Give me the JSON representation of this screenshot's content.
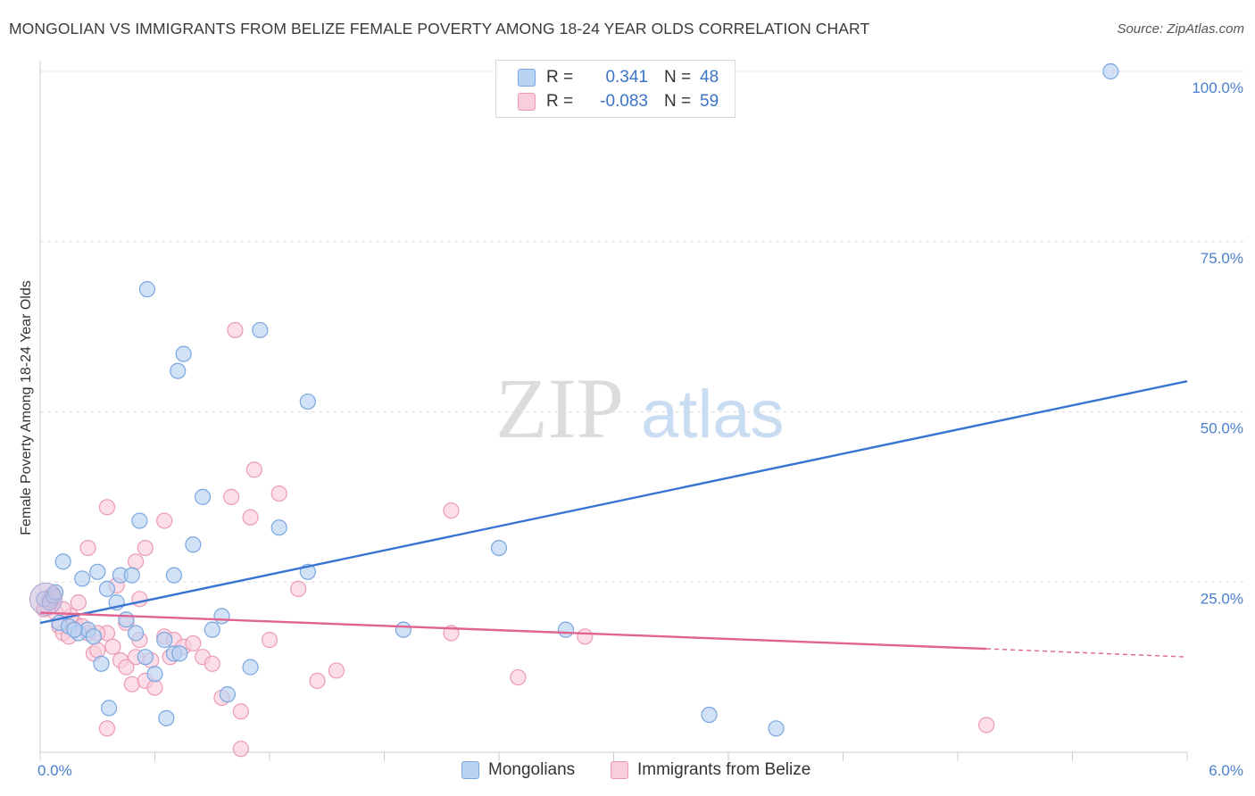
{
  "title": "MONGOLIAN VS IMMIGRANTS FROM BELIZE FEMALE POVERTY AMONG 18-24 YEAR OLDS CORRELATION CHART",
  "source": "Source: ZipAtlas.com",
  "watermark": {
    "zip": "ZIP",
    "atlas": "atlas"
  },
  "legend": {
    "rows": [
      {
        "r_label": "R =",
        "r_value": "0.341",
        "n_label": "N =",
        "n_value": "48",
        "color": "blue"
      },
      {
        "r_label": "R =",
        "r_value": "-0.083",
        "n_label": "N =",
        "n_value": "59",
        "color": "pink"
      }
    ]
  },
  "bottom_legend": {
    "series1": "Mongolians",
    "series2": "Immigrants from Belize"
  },
  "colors": {
    "blue": "#3874d1",
    "blue_fill": "#b8d3f3",
    "pink": "#e0648e",
    "pink_fill": "#f9cddb",
    "tick": "#4a7fcc"
  },
  "chart_data": {
    "type": "scatter",
    "title": "MONGOLIAN VS IMMIGRANTS FROM BELIZE FEMALE POVERTY AMONG 18-24 YEAR OLDS CORRELATION CHART",
    "xlabel": "",
    "ylabel": "Female Poverty Among 18-24 Year Olds",
    "xlim": [
      0,
      6
    ],
    "ylim": [
      0,
      100
    ],
    "x_tick_labels": [
      "0.0%",
      "6.0%"
    ],
    "y_ticks": [
      25,
      50,
      75,
      100
    ],
    "y_tick_labels": [
      "25.0%",
      "50.0%",
      "75.0%",
      "100.0%"
    ],
    "series": [
      {
        "name": "Mongolians",
        "color": "#3874d1",
        "trend": {
          "x": [
            0,
            6
          ],
          "y": [
            19.0,
            54.5
          ]
        },
        "points": [
          [
            0.02,
            22.5
          ],
          [
            0.05,
            22.0
          ],
          [
            0.07,
            23.0
          ],
          [
            0.1,
            19.0
          ],
          [
            0.12,
            28.0
          ],
          [
            0.15,
            18.5
          ],
          [
            0.2,
            17.5
          ],
          [
            0.25,
            18.0
          ],
          [
            0.28,
            17.0
          ],
          [
            0.22,
            25.5
          ],
          [
            0.35,
            24.0
          ],
          [
            0.4,
            22.0
          ],
          [
            0.32,
            13.0
          ],
          [
            0.42,
            26.0
          ],
          [
            0.45,
            19.5
          ],
          [
            0.5,
            17.5
          ],
          [
            0.55,
            14.0
          ],
          [
            0.52,
            34.0
          ],
          [
            0.6,
            11.5
          ],
          [
            0.65,
            16.5
          ],
          [
            0.7,
            14.5
          ],
          [
            0.73,
            14.5
          ],
          [
            0.7,
            26.0
          ],
          [
            0.8,
            30.5
          ],
          [
            0.85,
            37.5
          ],
          [
            0.9,
            18.0
          ],
          [
            0.95,
            20.0
          ],
          [
            0.75,
            58.5
          ],
          [
            0.98,
            8.5
          ],
          [
            1.1,
            12.5
          ],
          [
            1.15,
            62.0
          ],
          [
            1.25,
            33.0
          ],
          [
            1.4,
            26.5
          ],
          [
            0.72,
            56.0
          ],
          [
            0.56,
            68.0
          ],
          [
            1.4,
            51.5
          ],
          [
            1.9,
            18.0
          ],
          [
            2.4,
            30.0
          ],
          [
            2.75,
            18.0
          ],
          [
            3.5,
            5.5
          ],
          [
            3.85,
            3.5
          ],
          [
            0.3,
            26.5
          ],
          [
            0.48,
            26.0
          ],
          [
            0.36,
            6.5
          ],
          [
            0.66,
            5.0
          ],
          [
            0.08,
            23.5
          ],
          [
            5.6,
            100.0
          ],
          [
            0.18,
            18.0
          ]
        ]
      },
      {
        "name": "Immigrants from Belize",
        "color": "#e0648e",
        "trend": {
          "x": [
            0,
            4.95
          ],
          "y": [
            20.5,
            15.2
          ]
        },
        "trend_dashed": {
          "x": [
            4.95,
            6
          ],
          "y": [
            15.2,
            14.0
          ]
        },
        "points": [
          [
            0.02,
            21.0
          ],
          [
            0.05,
            22.5
          ],
          [
            0.08,
            20.5
          ],
          [
            0.1,
            18.5
          ],
          [
            0.12,
            17.5
          ],
          [
            0.15,
            17.0
          ],
          [
            0.18,
            19.0
          ],
          [
            0.2,
            22.0
          ],
          [
            0.22,
            18.5
          ],
          [
            0.25,
            17.5
          ],
          [
            0.28,
            14.5
          ],
          [
            0.3,
            15.0
          ],
          [
            0.35,
            17.5
          ],
          [
            0.38,
            15.5
          ],
          [
            0.42,
            13.5
          ],
          [
            0.45,
            12.5
          ],
          [
            0.48,
            10.0
          ],
          [
            0.5,
            14.0
          ],
          [
            0.52,
            16.5
          ],
          [
            0.55,
            10.5
          ],
          [
            0.58,
            13.5
          ],
          [
            0.6,
            9.5
          ],
          [
            0.65,
            17.0
          ],
          [
            0.68,
            14.0
          ],
          [
            0.7,
            16.5
          ],
          [
            0.75,
            15.5
          ],
          [
            0.8,
            16.0
          ],
          [
            0.85,
            14.0
          ],
          [
            0.9,
            13.0
          ],
          [
            0.95,
            8.0
          ],
          [
            1.0,
            37.5
          ],
          [
            1.05,
            6.0
          ],
          [
            1.1,
            34.5
          ],
          [
            1.2,
            16.5
          ],
          [
            1.25,
            38.0
          ],
          [
            1.35,
            24.0
          ],
          [
            1.45,
            10.5
          ],
          [
            1.55,
            12.0
          ],
          [
            0.52,
            22.5
          ],
          [
            0.55,
            30.0
          ],
          [
            0.5,
            28.0
          ],
          [
            0.25,
            30.0
          ],
          [
            0.35,
            36.0
          ],
          [
            0.65,
            34.0
          ],
          [
            1.02,
            62.0
          ],
          [
            1.12,
            41.5
          ],
          [
            2.15,
            35.5
          ],
          [
            2.15,
            17.5
          ],
          [
            2.5,
            11.0
          ],
          [
            2.85,
            17.0
          ],
          [
            4.95,
            4.0
          ],
          [
            1.05,
            0.5
          ],
          [
            0.35,
            3.5
          ],
          [
            0.16,
            20.0
          ],
          [
            0.06,
            23.0
          ],
          [
            0.4,
            24.5
          ],
          [
            0.45,
            19.0
          ],
          [
            0.3,
            17.5
          ],
          [
            0.12,
            21.0
          ]
        ]
      }
    ]
  }
}
